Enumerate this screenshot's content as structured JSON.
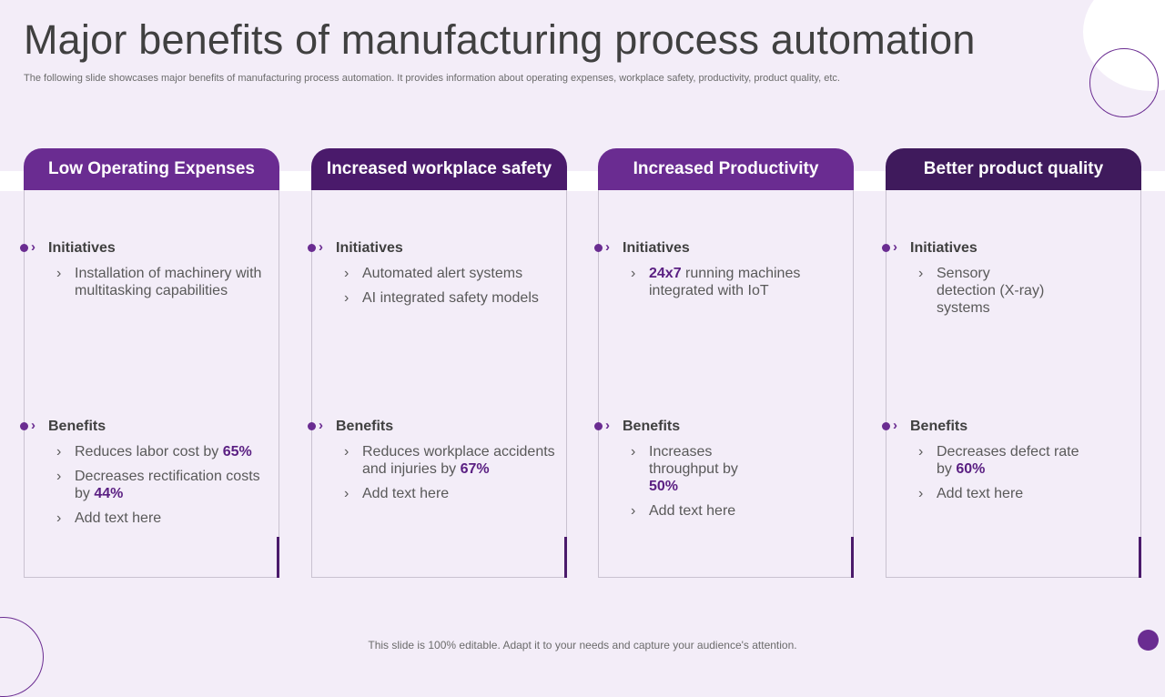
{
  "slide": {
    "title": "Major benefits of manufacturing process automation",
    "subtitle": "The following slide showcases major benefits of manufacturing process automation. It provides information about operating expenses, workplace safety, productivity,  product quality, etc.",
    "footer": "This slide is 100% editable. Adapt it to your needs and capture your audience's attention."
  },
  "colors": {
    "header_1": "#6a2c91",
    "header_2": "#4a1a6b",
    "header_3": "#6a2c91",
    "header_4": "#3f1a5c",
    "highlight": "#5a1f82"
  },
  "icons": {
    "section_marker": "dot-chevron-icon",
    "bullet": "chevron-right-icon"
  },
  "cards": [
    {
      "header": "Low Operating Expenses",
      "initiatives_label": "Initiatives",
      "initiatives": [
        {
          "pre": "Installation  of machinery with multitasking capabilities",
          "hl": "",
          "post": ""
        }
      ],
      "benefits_label": "Benefits",
      "benefits": [
        {
          "pre": "Reduces labor cost by ",
          "hl": "65%",
          "post": ""
        },
        {
          "pre": "Decreases rectification costs by ",
          "hl": "44%",
          "post": ""
        },
        {
          "pre": "Add text here",
          "hl": "",
          "post": ""
        }
      ]
    },
    {
      "header": "Increased workplace safety",
      "initiatives_label": "Initiatives",
      "initiatives": [
        {
          "pre": "Automated alert systems",
          "hl": "",
          "post": ""
        },
        {
          "pre": "AI integrated safety models",
          "hl": "",
          "post": ""
        }
      ],
      "benefits_label": "Benefits",
      "benefits": [
        {
          "pre": "Reduces workplace accidents and injuries by ",
          "hl": "67%",
          "post": ""
        },
        {
          "pre": "Add text here",
          "hl": "",
          "post": ""
        }
      ]
    },
    {
      "header": "Increased Productivity",
      "initiatives_label": "Initiatives",
      "initiatives": [
        {
          "pre": "",
          "hl": "24x7",
          "post": " running machines integrated with IoT"
        }
      ],
      "benefits_label": "Benefits",
      "benefits": [
        {
          "pre": "Increases throughput  by ",
          "hl": "50%",
          "post": ""
        },
        {
          "pre": "Add text here",
          "hl": "",
          "post": ""
        }
      ]
    },
    {
      "header": "Better product quality",
      "initiatives_label": "Initiatives",
      "initiatives": [
        {
          "pre": "Sensory detection (X-ray) systems",
          "hl": "",
          "post": ""
        }
      ],
      "benefits_label": "Benefits",
      "benefits": [
        {
          "pre": "Decreases defect rate by ",
          "hl": "60%",
          "post": ""
        },
        {
          "pre": "Add text here",
          "hl": "",
          "post": ""
        }
      ]
    }
  ]
}
